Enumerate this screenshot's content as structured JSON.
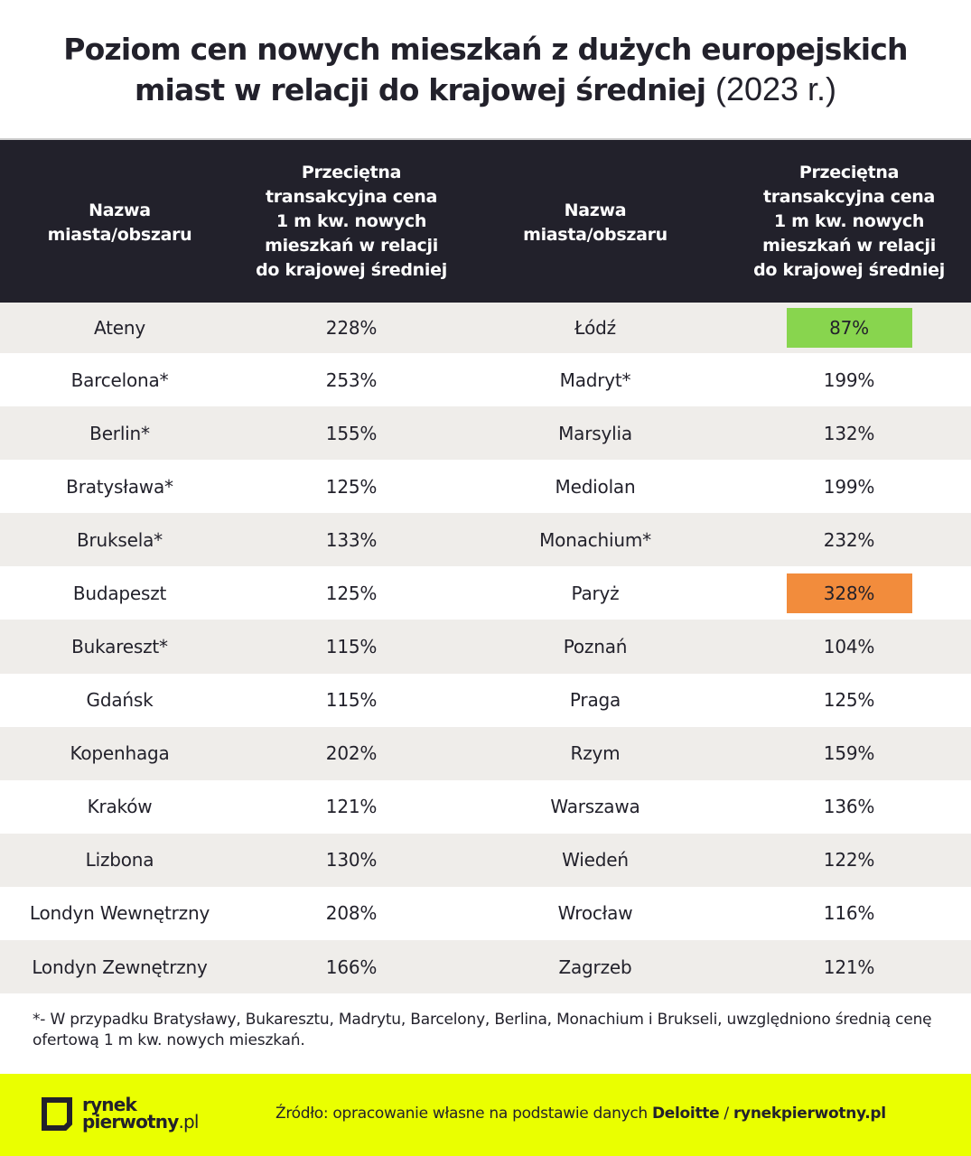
{
  "title": {
    "line1": "Poziom cen nowych mieszkań z dużych europejskich",
    "line2": "miast w relacji do krajowej średniej",
    "year": "(2023 r.)"
  },
  "table": {
    "headers": {
      "name": "Nazwa miasta/obszaru",
      "value_lines": [
        "Przeciętna",
        "transakcyjna cena",
        "1 m kw. nowych",
        "mieszkań w relacji",
        "do krajowej średniej"
      ],
      "name_lines": [
        "Nazwa",
        "miasta/obszaru"
      ]
    },
    "rows": [
      {
        "left_city": "Ateny",
        "left_value": "228%",
        "right_city": "Łódź",
        "right_value": "87%",
        "right_highlight": "#88d54e"
      },
      {
        "left_city": "Barcelona*",
        "left_value": "253%",
        "right_city": "Madryt*",
        "right_value": "199%",
        "right_highlight": null
      },
      {
        "left_city": "Berlin*",
        "left_value": "155%",
        "right_city": "Marsylia",
        "right_value": "132%",
        "right_highlight": null
      },
      {
        "left_city": "Bratysława*",
        "left_value": "125%",
        "right_city": "Mediolan",
        "right_value": "199%",
        "right_highlight": null
      },
      {
        "left_city": "Bruksela*",
        "left_value": "133%",
        "right_city": "Monachium*",
        "right_value": "232%",
        "right_highlight": null
      },
      {
        "left_city": "Budapeszt",
        "left_value": "125%",
        "right_city": "Paryż",
        "right_value": "328%",
        "right_highlight": "#f28c3c"
      },
      {
        "left_city": "Bukareszt*",
        "left_value": "115%",
        "right_city": "Poznań",
        "right_value": "104%",
        "right_highlight": null
      },
      {
        "left_city": "Gdańsk",
        "left_value": "115%",
        "right_city": "Praga",
        "right_value": "125%",
        "right_highlight": null
      },
      {
        "left_city": "Kopenhaga",
        "left_value": "202%",
        "right_city": "Rzym",
        "right_value": "159%",
        "right_highlight": null
      },
      {
        "left_city": "Kraków",
        "left_value": "121%",
        "right_city": "Warszawa",
        "right_value": "136%",
        "right_highlight": null
      },
      {
        "left_city": "Lizbona",
        "left_value": "130%",
        "right_city": "Wiedeń",
        "right_value": "122%",
        "right_highlight": null
      },
      {
        "left_city": "Londyn Wewnętrzny",
        "left_value": "208%",
        "right_city": "Wrocław",
        "right_value": "116%",
        "right_highlight": null
      },
      {
        "left_city": "Londyn Zewnętrzny",
        "left_value": "166%",
        "right_city": "Zagrzeb",
        "right_value": "121%",
        "right_highlight": null
      }
    ]
  },
  "footnote": "*- W przypadku Bratysławy, Bukaresztu, Madrytu, Barcelony, Berlina, Monachium i Brukseli, uwzględniono średnią cenę ofertową 1 m kw. nowych mieszkań.",
  "footer": {
    "logo_line1": "rynek",
    "logo_line2": "pierwotny",
    "logo_suffix": ".pl",
    "logo_icon": "cube-outline-icon",
    "source_prefix": "Źródło: opracowanie własne na podstawie danych ",
    "source_bold1": "Deloitte",
    "source_sep": " / ",
    "source_bold2": "rynekpierwotny.pl"
  },
  "colors": {
    "header_bg": "#22212b",
    "row_alt_bg": "#efedea",
    "footer_bg": "#eaff00",
    "highlight_low": "#88d54e",
    "highlight_high": "#f28c3c"
  }
}
